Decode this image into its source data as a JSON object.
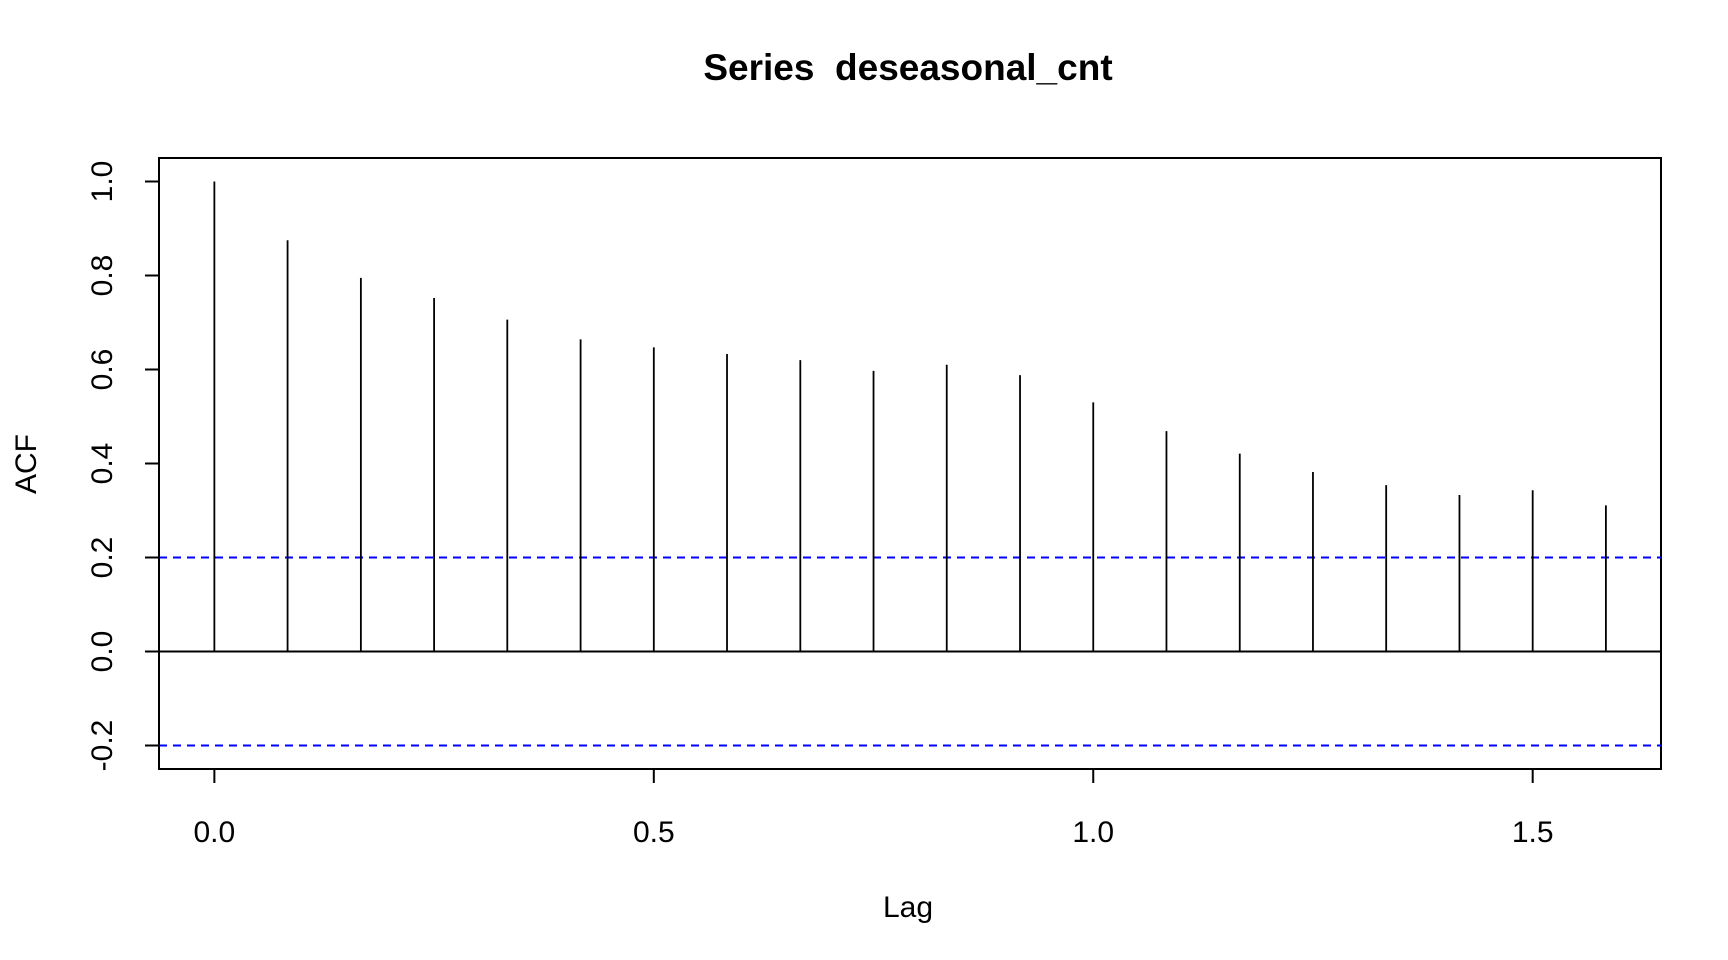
{
  "chart_data": {
    "type": "bar",
    "title": "Series  deseasonal_cnt",
    "xlabel": "Lag",
    "ylabel": "ACF",
    "xlim": [
      -0.063,
      1.646
    ],
    "ylim": [
      -0.25,
      1.05
    ],
    "x_ticks": [
      {
        "value": 0.0,
        "label": "0.0"
      },
      {
        "value": 0.5,
        "label": "0.5"
      },
      {
        "value": 1.0,
        "label": "1.0"
      },
      {
        "value": 1.5,
        "label": "1.5"
      }
    ],
    "y_ticks": [
      {
        "value": -0.2,
        "label": "-0.2"
      },
      {
        "value": 0.0,
        "label": "0.0"
      },
      {
        "value": 0.2,
        "label": "0.2"
      },
      {
        "value": 0.4,
        "label": "0.4"
      },
      {
        "value": 0.6,
        "label": "0.6"
      },
      {
        "value": 0.8,
        "label": "0.8"
      },
      {
        "value": 1.0,
        "label": "1.0"
      }
    ],
    "x": [
      0.0,
      0.0833,
      0.1667,
      0.25,
      0.3333,
      0.4167,
      0.5,
      0.5833,
      0.6667,
      0.75,
      0.8333,
      0.9167,
      1.0,
      1.0833,
      1.1667,
      1.25,
      1.3333,
      1.4167,
      1.5,
      1.5833
    ],
    "values": [
      1.0,
      0.875,
      0.795,
      0.752,
      0.706,
      0.664,
      0.647,
      0.633,
      0.62,
      0.597,
      0.61,
      0.588,
      0.53,
      0.469,
      0.421,
      0.382,
      0.354,
      0.333,
      0.343,
      0.311
    ],
    "confidence_bounds": [
      -0.2,
      0.2
    ],
    "colors": {
      "bars": "#000000",
      "confidence": "#0000ff",
      "frame": "#000000"
    },
    "grid": false
  }
}
